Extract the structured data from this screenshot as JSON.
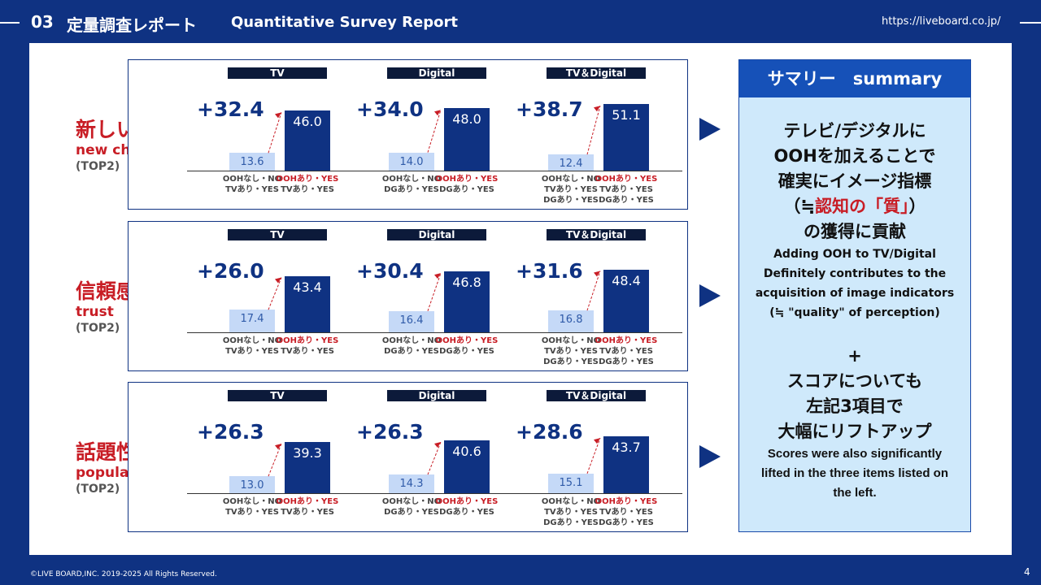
{
  "header": {
    "number": "03",
    "title_jp": "定量調査レポート",
    "title_en": "Quantitative Survey Report",
    "url": "https://liveboard.co.jp/"
  },
  "rows": [
    {
      "label_jp": "新しい挑戦",
      "label_en": "new challenge",
      "label_top": "(TOP2)",
      "groups": [
        {
          "title": "TV",
          "diff": "+32.4",
          "without": "13.6",
          "with": "46.0",
          "without_lines": [
            "OOHなし・NO",
            "TVあり・YES"
          ],
          "with_lines": [
            "OOHあり・YES",
            "TVあり・YES"
          ]
        },
        {
          "title": "Digital",
          "diff": "+34.0",
          "without": "14.0",
          "with": "48.0",
          "without_lines": [
            "OOHなし・NO",
            "DGあり・YES"
          ],
          "with_lines": [
            "OOHあり・YES",
            "DGあり・YES"
          ]
        },
        {
          "title": "TV＆Digital",
          "diff": "+38.7",
          "without": "12.4",
          "with": "51.1",
          "without_lines": [
            "OOHなし・NO",
            "TVあり・YES",
            "DGあり・YES"
          ],
          "with_lines": [
            "OOHあり・YES",
            "TVあり・YES",
            "DGあり・YES"
          ]
        }
      ]
    },
    {
      "label_jp": "信頼感",
      "label_en": "trust",
      "label_top": "(TOP2)",
      "groups": [
        {
          "title": "TV",
          "diff": "+26.0",
          "without": "17.4",
          "with": "43.4",
          "without_lines": [
            "OOHなし・NO",
            "TVあり・YES"
          ],
          "with_lines": [
            "OOHあり・YES",
            "TVあり・YES"
          ]
        },
        {
          "title": "Digital",
          "diff": "+30.4",
          "without": "16.4",
          "with": "46.8",
          "without_lines": [
            "OOHなし・NO",
            "DGあり・YES"
          ],
          "with_lines": [
            "OOHあり・YES",
            "DGあり・YES"
          ]
        },
        {
          "title": "TV＆Digital",
          "diff": "+31.6",
          "without": "16.8",
          "with": "48.4",
          "without_lines": [
            "OOHなし・NO",
            "TVあり・YES",
            "DGあり・YES"
          ],
          "with_lines": [
            "OOHあり・YES",
            "TVあり・YES",
            "DGあり・YES"
          ]
        }
      ]
    },
    {
      "label_jp": "話題性",
      "label_en": "popularity",
      "label_top": "(TOP2)",
      "groups": [
        {
          "title": "TV",
          "diff": "+26.3",
          "without": "13.0",
          "with": "39.3",
          "without_lines": [
            "OOHなし・NO",
            "TVあり・YES"
          ],
          "with_lines": [
            "OOHあり・YES",
            "TVあり・YES"
          ]
        },
        {
          "title": "Digital",
          "diff": "+26.3",
          "without": "14.3",
          "with": "40.6",
          "without_lines": [
            "OOHなし・NO",
            "DGあり・YES"
          ],
          "with_lines": [
            "OOHあり・YES",
            "DGあり・YES"
          ]
        },
        {
          "title": "TV＆Digital",
          "diff": "+28.6",
          "without": "15.1",
          "with": "43.7",
          "without_lines": [
            "OOHなし・NO",
            "TVあり・YES",
            "DGあり・YES"
          ],
          "with_lines": [
            "OOHあり・YES",
            "TVあり・YES",
            "DGあり・YES"
          ]
        }
      ]
    }
  ],
  "summary": {
    "title": "サマリー　summary",
    "jp1": [
      "テレビ/デジタルに",
      "OOHを加えることで",
      "確実にイメージ指標"
    ],
    "jp_paren_open": "（≒",
    "jp_paren_red": "認知の「質」",
    "jp_paren_close": "）",
    "jp2": "の獲得に貢献",
    "en1": [
      "Adding OOH to TV/Digital",
      "Definitely contributes to the",
      "acquisition of image indicators",
      "(≒ \"quality\" of perception)"
    ],
    "plus": "+",
    "jp3": [
      "スコアについても",
      "左記3項目で",
      "大幅にリフトアップ"
    ],
    "en2": [
      "Scores were also significantly",
      "lifted in the three items listed on",
      "the left."
    ]
  },
  "footer": "©LIVE BOARD,INC. 2019-2025 All Rights Reserved.",
  "page_number": "4",
  "colors": {
    "navy": "#0f3282",
    "red": "#c81d25",
    "light_bar": "#c5d9f7"
  }
}
